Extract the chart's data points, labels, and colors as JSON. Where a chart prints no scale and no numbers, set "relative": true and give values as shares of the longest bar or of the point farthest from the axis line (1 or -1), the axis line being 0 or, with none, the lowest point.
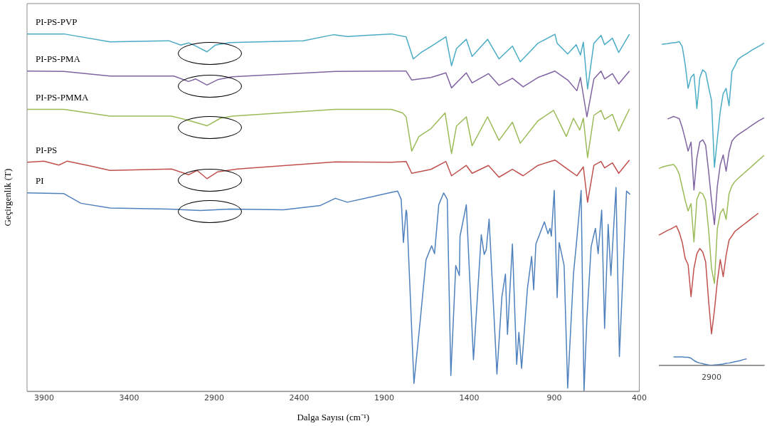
{
  "chart_data": [
    {
      "type": "line",
      "xlabel": "Dalga Sayısı (cm⁻¹)",
      "ylabel": "Geçirgenlik (T)",
      "relative": true,
      "marker": "none",
      "legend": false,
      "grid": false,
      "xlim": [
        4000,
        400
      ],
      "xticks": [
        3900,
        3400,
        2900,
        2400,
        1900,
        1400,
        900,
        400
      ],
      "series": [
        {
          "name": "PI-PS-PVP",
          "color": "#4bacc6",
          "x": [
            4000,
            3783,
            3512,
            3167,
            3096,
            3050,
            3008,
            2942,
            2892,
            2808,
            2375,
            2196,
            2117,
            1858,
            1771,
            1729,
            1683,
            1621,
            1537,
            1504,
            1475,
            1417,
            1383,
            1292,
            1225,
            1146,
            1100,
            996,
            896,
            883,
            821,
            771,
            746,
            729,
            704,
            667,
            625,
            604,
            558,
            521,
            458
          ],
          "values": [
            1.0,
            1.0,
            0.978,
            0.981,
            0.969,
            0.975,
            0.966,
            0.95,
            0.969,
            0.976,
            0.981,
            0.998,
            0.993,
            1.0,
            0.992,
            0.93,
            0.948,
            0.966,
            0.992,
            0.911,
            0.959,
            0.985,
            0.937,
            0.985,
            0.93,
            0.966,
            0.922,
            0.974,
            0.999,
            0.974,
            0.944,
            0.97,
            0.941,
            0.977,
            0.846,
            0.974,
            0.996,
            0.97,
            0.988,
            0.948,
            0.999
          ]
        },
        {
          "name": "PI-PS-PMA",
          "color": "#8064a2",
          "x": [
            4000,
            3783,
            3512,
            3137,
            3050,
            3008,
            2942,
            2879,
            2792,
            2187,
            1858,
            1771,
            1738,
            1625,
            1537,
            1504,
            1417,
            1383,
            1287,
            1225,
            1146,
            1083,
            996,
            896,
            821,
            767,
            746,
            708,
            667,
            625,
            604,
            558,
            521,
            458
          ],
          "values": [
            0.896,
            0.895,
            0.882,
            0.882,
            0.867,
            0.874,
            0.857,
            0.872,
            0.88,
            0.895,
            0.896,
            0.896,
            0.871,
            0.878,
            0.891,
            0.849,
            0.891,
            0.863,
            0.889,
            0.856,
            0.876,
            0.852,
            0.878,
            0.896,
            0.871,
            0.841,
            0.878,
            0.768,
            0.874,
            0.896,
            0.874,
            0.889,
            0.86,
            0.896
          ]
        },
        {
          "name": "PI-PS-PMMA",
          "color": "#9bbb59",
          "x": [
            4000,
            3783,
            3512,
            3150,
            3050,
            2942,
            2863,
            2792,
            2187,
            1858,
            1792,
            1771,
            1738,
            1696,
            1625,
            1542,
            1504,
            1475,
            1417,
            1383,
            1292,
            1225,
            1146,
            1100,
            996,
            904,
            829,
            787,
            750,
            729,
            704,
            667,
            625,
            604,
            558,
            521,
            458
          ],
          "values": [
            0.789,
            0.789,
            0.77,
            0.77,
            0.758,
            0.743,
            0.764,
            0.77,
            0.789,
            0.789,
            0.779,
            0.768,
            0.672,
            0.713,
            0.735,
            0.779,
            0.665,
            0.742,
            0.768,
            0.687,
            0.768,
            0.702,
            0.753,
            0.694,
            0.757,
            0.786,
            0.713,
            0.764,
            0.731,
            0.764,
            0.654,
            0.772,
            0.786,
            0.761,
            0.775,
            0.728,
            0.79
          ]
        },
        {
          "name": "PI-PS",
          "color": "#c0504d",
          "x": [
            4000,
            3900,
            3813,
            3763,
            3613,
            3512,
            3150,
            3050,
            3000,
            2942,
            2879,
            2763,
            2187,
            1858,
            1771,
            1738,
            1625,
            1537,
            1504,
            1417,
            1383,
            1287,
            1225,
            1146,
            1083,
            996,
            896,
            821,
            767,
            729,
            704,
            667,
            625,
            604,
            558,
            521,
            458
          ],
          "values": [
            0.641,
            0.644,
            0.633,
            0.644,
            0.629,
            0.618,
            0.622,
            0.606,
            0.618,
            0.595,
            0.614,
            0.622,
            0.642,
            0.641,
            0.643,
            0.61,
            0.621,
            0.643,
            0.603,
            0.632,
            0.61,
            0.632,
            0.599,
            0.621,
            0.603,
            0.632,
            0.647,
            0.621,
            0.603,
            0.628,
            0.529,
            0.632,
            0.643,
            0.625,
            0.639,
            0.61,
            0.647
          ]
        },
        {
          "name": "PI",
          "color": "#4f81bd",
          "x": [
            4000,
            3783,
            3683,
            3512,
            3167,
            2979,
            2808,
            2492,
            2275,
            2187,
            2117,
            1871,
            1821,
            1800,
            1787,
            1771,
            1767,
            1725,
            1688,
            1654,
            1621,
            1604,
            1579,
            1550,
            1529,
            1508,
            1479,
            1458,
            1454,
            1417,
            1375,
            1329,
            1312,
            1300,
            1283,
            1237,
            1208,
            1187,
            1175,
            1146,
            1121,
            1108,
            1092,
            1058,
            1033,
            1021,
            1008,
            958,
            937,
            925,
            917,
            900,
            883,
            871,
            842,
            821,
            787,
            767,
            742,
            725,
            708,
            683,
            658,
            642,
            621,
            604,
            583,
            567,
            537,
            517,
            475,
            454
          ],
          "values": [
            0.555,
            0.553,
            0.526,
            0.513,
            0.51,
            0.506,
            0.51,
            0.508,
            0.52,
            0.54,
            0.529,
            0.555,
            0.56,
            0.537,
            0.416,
            0.507,
            0.5,
            0.022,
            0.198,
            0.368,
            0.407,
            0.385,
            0.522,
            0.555,
            0.537,
            0.044,
            0.352,
            0.324,
            0.434,
            0.522,
            0.088,
            0.438,
            0.383,
            0.396,
            0.482,
            0.048,
            0.264,
            0.328,
            0.159,
            0.412,
            0.075,
            0.165,
            0.064,
            0.286,
            0.377,
            0.284,
            0.412,
            0.474,
            0.441,
            0.456,
            0.434,
            0.562,
            0.262,
            0.416,
            0.352,
            0.009,
            0.328,
            0.427,
            0.562,
            0,
            0.203,
            0.405,
            0.456,
            0.385,
            0.507,
            0.176,
            0.467,
            0.324,
            0.57,
            0.097,
            0.56,
            0.551
          ]
        }
      ]
    },
    {
      "type": "line",
      "relative": true,
      "marker": "none",
      "legend": false,
      "grid": false,
      "annotations": [
        "2900"
      ],
      "categories": [
        null,
        null,
        null,
        null,
        null,
        null,
        null,
        null,
        null,
        null,
        null,
        null,
        null,
        null,
        null,
        null,
        null,
        null,
        null,
        null,
        null,
        null,
        null,
        null,
        null,
        null,
        null,
        null,
        null,
        null,
        null,
        null,
        null,
        null,
        null,
        null,
        null
      ],
      "series": [
        {
          "color": "#4bacc6",
          "values": [
            null,
            0.992,
            0.993,
            0.994,
            0.996,
            0.997,
            0.998,
            1.0,
            0.985,
            0.93,
            0.856,
            0.89,
            0.9,
            0.794,
            0.889,
            0.913,
            0.905,
            0.86,
            0.819,
            0.612,
            0.7,
            0.785,
            0.84,
            0.856,
            0.802,
            0.909,
            0.925,
            0.945,
            0.952,
            0.958,
            0.963,
            0.969,
            0.975,
            0.98,
            0.985,
            0.99,
            0.996
          ]
        },
        {
          "color": "#8064a2",
          "values": [
            null,
            null,
            null,
            0.761,
            0.765,
            0.769,
            0.766,
            0.762,
            0.735,
            0.7,
            0.662,
            0.69,
            0.542,
            0.64,
            0.69,
            0.697,
            0.68,
            0.6,
            0.51,
            0.435,
            0.554,
            0.62,
            0.65,
            0.6,
            0.66,
            0.693,
            0.704,
            0.712,
            0.718,
            0.724,
            0.73,
            0.737,
            0.743,
            0.749,
            0.755,
            0.76,
            0.765
          ]
        },
        {
          "color": "#9bbb59",
          "values": [
            0.608,
            0.612,
            0.615,
            0.617,
            0.619,
            0.621,
            0.61,
            0.59,
            0.55,
            0.51,
            0.477,
            0.5,
            0.381,
            0.513,
            0.535,
            0.53,
            0.509,
            0.42,
            0.3,
            0.253,
            0.423,
            0.47,
            0.484,
            0.451,
            0.53,
            0.555,
            0.568,
            0.577,
            0.585,
            0.593,
            0.601,
            0.609,
            0.617,
            0.625,
            0.633,
            0.641,
            0.649
          ]
        },
        {
          "color": "#c0504d",
          "values": [
            0.402,
            0.407,
            0.412,
            0.417,
            0.421,
            0.426,
            0.431,
            0.41,
            0.38,
            0.33,
            0.311,
            0.212,
            0.3,
            0.345,
            0.361,
            0.35,
            0.32,
            0.2,
            0.097,
            0.17,
            0.26,
            0.327,
            0.274,
            0.34,
            0.387,
            0.4,
            0.414,
            0.421,
            0.428,
            0.435,
            0.442,
            0.449,
            0.456,
            0.463,
            0.47,
            null,
            null
          ]
        },
        {
          "color": "#4f81bd",
          "values": [
            null,
            null,
            null,
            null,
            null,
            0.026,
            0.026,
            0.026,
            0.026,
            0.025,
            0.025,
            0.022,
            0.015,
            0.01,
            0.007,
            0.005,
            0.003,
            0.001,
            0,
            0.001,
            0.002,
            0.003,
            0.004,
            0.006,
            0.007,
            0.009,
            0.011,
            0.013,
            0.015,
            0.018,
            0.02,
            null,
            null,
            null,
            null,
            null,
            null
          ]
        }
      ]
    }
  ]
}
